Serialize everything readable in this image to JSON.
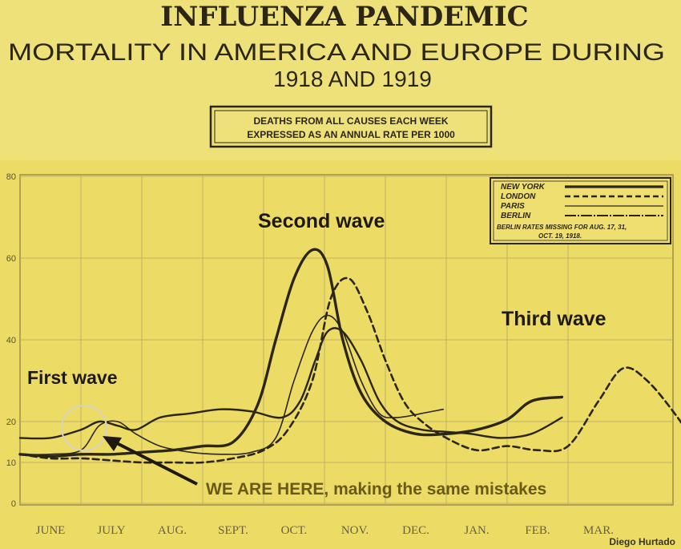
{
  "colors": {
    "background": "#ecdc66",
    "ink": "#2b2616",
    "grid": "#bfb064",
    "annotation_text": "#6a5a18"
  },
  "header": {
    "title": "INFLUENZA    PANDEMIC",
    "subtitle_line1": "MORTALITY IN AMERICA AND EUROPE DURING",
    "subtitle_line2": "1918 AND 1919"
  },
  "chart_data": {
    "type": "line",
    "title": "INFLUENZA PANDEMIC",
    "subtitle": "MORTALITY IN AMERICA AND EUROPE DURING 1918 AND 1919",
    "description_box": [
      "DEATHS FROM ALL CAUSES EACH WEEK",
      "EXPRESSED AS AN ANNUAL RATE PER 1000"
    ],
    "ylim": [
      0,
      80
    ],
    "yticks": [
      0,
      10,
      20,
      40,
      60,
      80
    ],
    "x_months": [
      "JUNE",
      "JULY",
      "AUG.",
      "SEPT.",
      "OCT.",
      "NOV.",
      "DEC.",
      "JAN.",
      "FEB.",
      "MAR."
    ],
    "grid": true,
    "legend": {
      "placement": "top-right",
      "entries": [
        "NEW YORK",
        "LONDON",
        "PARIS",
        "BERLIN"
      ],
      "note": [
        "BERLIN RATES MISSING FOR AUG. 17, 31,",
        "OCT. 19, 1918."
      ]
    },
    "series": [
      {
        "name": "NEW YORK",
        "style": "solid-heavy",
        "points": [
          [
            0,
            12
          ],
          [
            0.5,
            11.5
          ],
          [
            1,
            12
          ],
          [
            1.5,
            12
          ],
          [
            2,
            12.5
          ],
          [
            2.5,
            13
          ],
          [
            3,
            14
          ],
          [
            3.5,
            15
          ],
          [
            3.9,
            24
          ],
          [
            4.2,
            40
          ],
          [
            4.5,
            55
          ],
          [
            4.8,
            62
          ],
          [
            5.05,
            58
          ],
          [
            5.3,
            40
          ],
          [
            5.6,
            27
          ],
          [
            6,
            20
          ],
          [
            6.5,
            17
          ],
          [
            7,
            17
          ],
          [
            7.5,
            18
          ],
          [
            8,
            20.5
          ],
          [
            8.4,
            25
          ],
          [
            8.9,
            26
          ]
        ]
      },
      {
        "name": "LONDON",
        "style": "dashed",
        "points": [
          [
            0,
            12
          ],
          [
            0.5,
            11
          ],
          [
            1,
            11
          ],
          [
            1.5,
            10.5
          ],
          [
            2,
            10
          ],
          [
            2.5,
            10
          ],
          [
            3,
            10
          ],
          [
            3.5,
            11
          ],
          [
            4,
            13
          ],
          [
            4.4,
            18
          ],
          [
            4.8,
            30
          ],
          [
            5.1,
            50
          ],
          [
            5.4,
            55
          ],
          [
            5.7,
            47
          ],
          [
            6,
            35
          ],
          [
            6.3,
            25
          ],
          [
            6.6,
            20
          ],
          [
            7,
            16
          ],
          [
            7.5,
            13
          ],
          [
            8,
            14
          ],
          [
            8.5,
            13
          ],
          [
            9,
            14
          ],
          [
            9.5,
            25
          ],
          [
            9.9,
            33
          ],
          [
            10.3,
            30
          ],
          [
            10.8,
            21
          ],
          [
            11.1,
            14
          ]
        ]
      },
      {
        "name": "PARIS",
        "style": "thin",
        "points": [
          [
            0,
            12
          ],
          [
            0.5,
            12
          ],
          [
            1,
            13
          ],
          [
            1.3,
            19
          ],
          [
            1.6,
            20
          ],
          [
            1.9,
            17
          ],
          [
            2.3,
            14
          ],
          [
            2.8,
            12.5
          ],
          [
            3.3,
            12
          ],
          [
            3.8,
            12.5
          ],
          [
            4.2,
            16
          ],
          [
            4.5,
            30
          ],
          [
            4.8,
            42
          ],
          [
            5.05,
            46
          ],
          [
            5.3,
            42
          ],
          [
            5.6,
            30
          ],
          [
            5.9,
            22
          ],
          [
            6.2,
            21
          ],
          [
            6.6,
            22
          ],
          [
            6.95,
            23
          ]
        ]
      },
      {
        "name": "BERLIN",
        "style": "solid-medium",
        "points": [
          [
            0,
            16
          ],
          [
            0.5,
            16
          ],
          [
            1,
            18
          ],
          [
            1.3,
            20
          ],
          [
            1.6,
            19
          ],
          [
            1.9,
            18
          ],
          [
            2.3,
            21
          ],
          [
            2.8,
            22
          ],
          [
            3.3,
            23
          ],
          [
            3.8,
            22.5
          ],
          [
            4.3,
            21
          ],
          [
            4.6,
            25
          ],
          [
            4.85,
            35
          ],
          [
            5.05,
            42
          ],
          [
            5.3,
            42
          ],
          [
            5.6,
            35
          ],
          [
            5.9,
            25
          ],
          [
            6.2,
            20
          ],
          [
            6.6,
            18
          ],
          [
            7,
            17.5
          ],
          [
            7.4,
            17
          ],
          [
            7.9,
            16
          ],
          [
            8.4,
            17
          ],
          [
            8.9,
            21
          ]
        ]
      }
    ],
    "annotations": {
      "first_wave": "First wave",
      "second_wave": "Second wave",
      "third_wave": "Third wave",
      "we_are_here": "WE ARE HERE, making the same mistakes"
    },
    "credit": "Diego Hurtado"
  }
}
